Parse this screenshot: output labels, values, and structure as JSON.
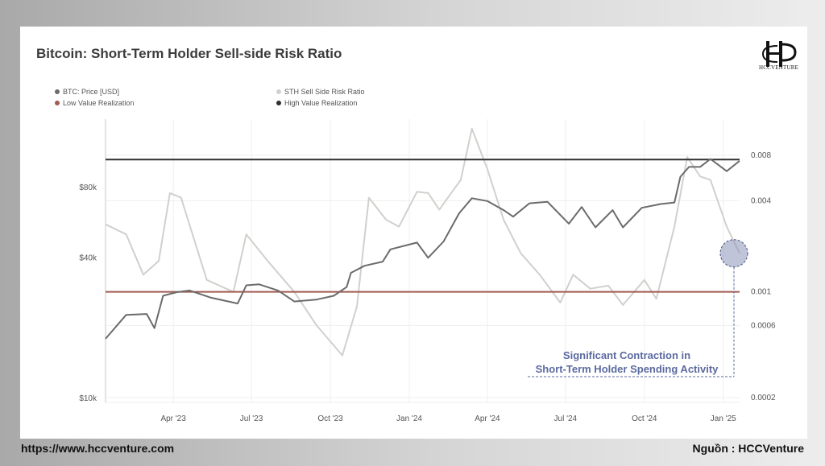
{
  "title": "Bitcoin: Short-Term Holder Sell-side Risk Ratio",
  "logo": {
    "text": "HCCVENTURE",
    "mark": "HCC monogram"
  },
  "footer": {
    "left": "https://www.hccventure.com",
    "right": "Nguồn : HCCVenture"
  },
  "annotation": {
    "line1": "Significant Contraction in",
    "line2": "Short-Term Holder Spending Activity",
    "color": "#5b6aa0"
  },
  "colors": {
    "btc": "#6b6b6b",
    "sth": "#d2d0cd",
    "low": "#a05a50",
    "high": "#2f2f2f",
    "highlight": "#8a93b8"
  },
  "chart_data": {
    "type": "line",
    "title": "Bitcoin: Short-Term Holder Sell-side Risk Ratio",
    "legend": [
      {
        "label": "BTC: Price [USD]",
        "color": "#6b6b6b"
      },
      {
        "label": "STH Sell Side Risk Ratio",
        "color": "#d2d0cd"
      },
      {
        "label": "Low Value Realization",
        "color": "#a05a50"
      },
      {
        "label": "High Value Realization",
        "color": "#2f2f2f"
      }
    ],
    "x_ticks": [
      "Apr '23",
      "Jul '23",
      "Oct '23",
      "Jan '24",
      "Apr '24",
      "Jul '24",
      "Oct '24",
      "Jan '25"
    ],
    "y_left_ticks": [
      "$80k",
      "$40k",
      "$10k"
    ],
    "y_right_ticks": [
      "0.008",
      "0.004",
      "0.001",
      "0.0006",
      "0.0002"
    ],
    "y_left_scale": "log",
    "y_right_scale": "log",
    "thresholds": {
      "high_value_realization": 0.0075,
      "low_value_realization": 0.001
    },
    "series": [
      {
        "name": "BTC: Price [USD]",
        "x": [
          "2023-01-12",
          "2023-02-05",
          "2023-03-01",
          "2023-03-10",
          "2023-03-20",
          "2023-04-05",
          "2023-04-20",
          "2023-05-15",
          "2023-06-15",
          "2023-06-25",
          "2023-07-10",
          "2023-08-01",
          "2023-08-20",
          "2023-09-15",
          "2023-10-05",
          "2023-10-20",
          "2023-10-25",
          "2023-11-10",
          "2023-12-01",
          "2023-12-10",
          "2024-01-10",
          "2024-01-23",
          "2024-02-10",
          "2024-02-28",
          "2024-03-14",
          "2024-04-01",
          "2024-04-20",
          "2024-05-01",
          "2024-05-20",
          "2024-06-10",
          "2024-07-05",
          "2024-07-20",
          "2024-08-05",
          "2024-08-25",
          "2024-09-06",
          "2024-09-28",
          "2024-10-20",
          "2024-11-05",
          "2024-11-12",
          "2024-11-22",
          "2024-12-05",
          "2024-12-17",
          "2025-01-05",
          "2025-01-20"
        ],
        "values": [
          18000,
          22800,
          23000,
          20000,
          27500,
          28500,
          29000,
          27000,
          25500,
          30500,
          30800,
          29000,
          26000,
          26500,
          27500,
          30000,
          34500,
          37000,
          38500,
          43500,
          46500,
          40000,
          47000,
          62000,
          72000,
          70000,
          64000,
          60000,
          68500,
          69500,
          56000,
          66000,
          54000,
          64000,
          54000,
          65500,
          68000,
          69000,
          89000,
          98000,
          98000,
          106000,
          94000,
          104000
        ]
      },
      {
        "name": "STH Sell Side Risk Ratio",
        "x": [
          "2023-01-12",
          "2023-02-05",
          "2023-02-25",
          "2023-03-15",
          "2023-03-28",
          "2023-04-10",
          "2023-05-10",
          "2023-06-10",
          "2023-06-25",
          "2023-07-20",
          "2023-08-20",
          "2023-09-15",
          "2023-10-15",
          "2023-11-01",
          "2023-11-15",
          "2023-12-05",
          "2023-12-20",
          "2024-01-10",
          "2024-01-23",
          "2024-02-05",
          "2024-02-20",
          "2024-03-01",
          "2024-03-14",
          "2024-04-01",
          "2024-04-20",
          "2024-05-10",
          "2024-06-01",
          "2024-06-25",
          "2024-07-10",
          "2024-07-30",
          "2024-08-20",
          "2024-09-06",
          "2024-10-01",
          "2024-10-15",
          "2024-11-05",
          "2024-11-20",
          "2024-12-05",
          "2024-12-17",
          "2025-01-05",
          "2025-01-20"
        ],
        "values": [
          0.0028,
          0.0024,
          0.0013,
          0.0016,
          0.0045,
          0.0042,
          0.0012,
          0.001,
          0.0024,
          0.0016,
          0.001,
          0.0006,
          0.00038,
          0.0008,
          0.0042,
          0.003,
          0.0027,
          0.0046,
          0.0045,
          0.0035,
          0.0046,
          0.0055,
          0.012,
          0.0065,
          0.003,
          0.0018,
          0.0013,
          0.00085,
          0.0013,
          0.00105,
          0.0011,
          0.00082,
          0.0012,
          0.0009,
          0.0027,
          0.0078,
          0.0058,
          0.0055,
          0.0027,
          0.0018
        ]
      }
    ]
  }
}
